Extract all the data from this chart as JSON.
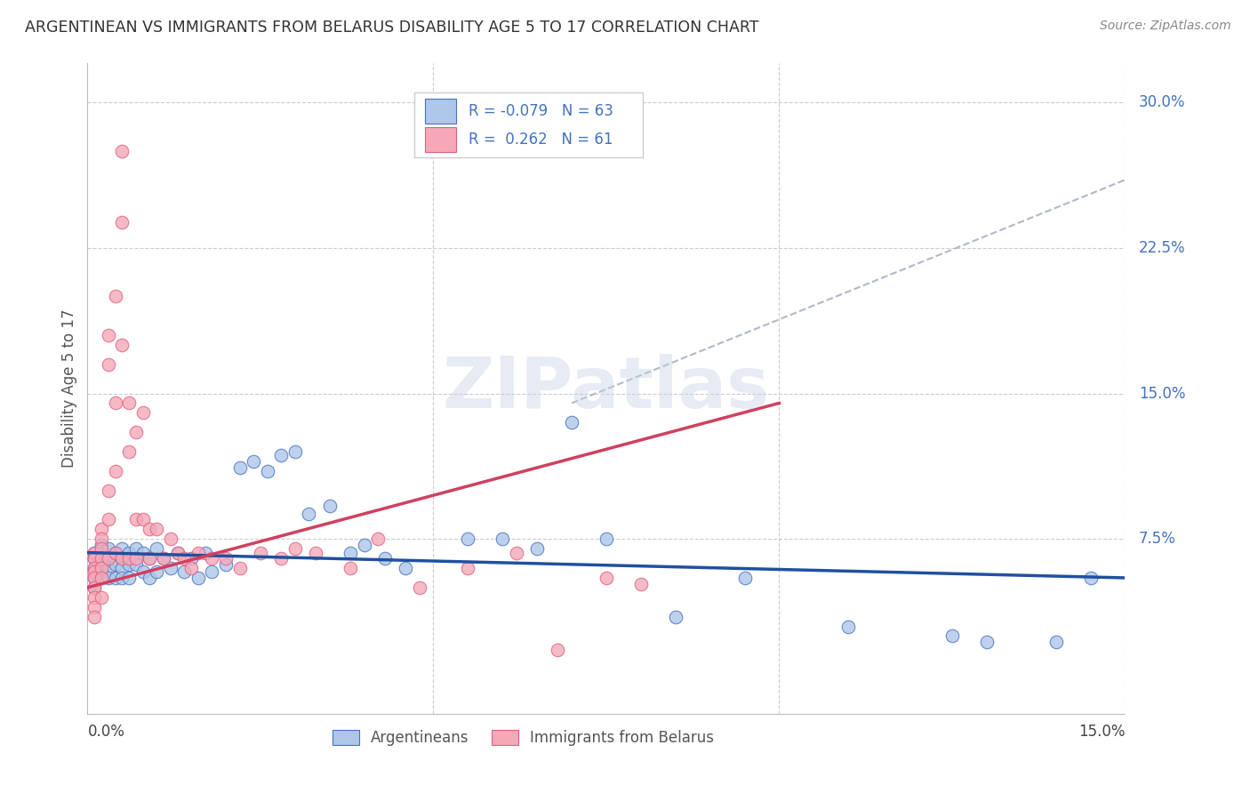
{
  "title": "ARGENTINEAN VS IMMIGRANTS FROM BELARUS DISABILITY AGE 5 TO 17 CORRELATION CHART",
  "source": "Source: ZipAtlas.com",
  "ylabel": "Disability Age 5 to 17",
  "ytick_labels": [
    "7.5%",
    "15.0%",
    "22.5%",
    "30.0%"
  ],
  "ytick_values": [
    0.075,
    0.15,
    0.225,
    0.3
  ],
  "xmin": 0.0,
  "xmax": 0.15,
  "ymin": -0.015,
  "ymax": 0.32,
  "R_blue": -0.079,
  "N_blue": 63,
  "R_pink": 0.262,
  "N_pink": 61,
  "color_blue_fill": "#aec6e8",
  "color_pink_fill": "#f4a8b8",
  "color_blue_edge": "#4472c4",
  "color_pink_edge": "#e06080",
  "color_blue_line": "#2050a0",
  "color_pink_line": "#d04060",
  "color_dashed": "#b0b8c8",
  "legend_label_blue": "Argentineans",
  "legend_label_pink": "Immigrants from Belarus",
  "blue_trend_x": [
    0.0,
    0.15
  ],
  "blue_trend_y": [
    0.068,
    0.055
  ],
  "pink_trend_x": [
    0.0,
    0.1
  ],
  "pink_trend_y": [
    0.05,
    0.145
  ],
  "dashed_trend_x": [
    0.07,
    0.15
  ],
  "dashed_trend_y": [
    0.145,
    0.26
  ],
  "blue_x": [
    0.001,
    0.001,
    0.001,
    0.001,
    0.001,
    0.002,
    0.002,
    0.002,
    0.002,
    0.003,
    0.003,
    0.003,
    0.003,
    0.004,
    0.004,
    0.004,
    0.005,
    0.005,
    0.005,
    0.005,
    0.006,
    0.006,
    0.006,
    0.007,
    0.007,
    0.008,
    0.008,
    0.009,
    0.009,
    0.01,
    0.01,
    0.011,
    0.012,
    0.013,
    0.014,
    0.015,
    0.016,
    0.017,
    0.018,
    0.02,
    0.022,
    0.024,
    0.026,
    0.028,
    0.03,
    0.032,
    0.035,
    0.038,
    0.04,
    0.043,
    0.046,
    0.055,
    0.06,
    0.065,
    0.07,
    0.075,
    0.085,
    0.095,
    0.11,
    0.125,
    0.13,
    0.14,
    0.145
  ],
  "blue_y": [
    0.068,
    0.065,
    0.06,
    0.055,
    0.05,
    0.072,
    0.068,
    0.062,
    0.058,
    0.07,
    0.065,
    0.06,
    0.055,
    0.068,
    0.062,
    0.055,
    0.07,
    0.065,
    0.06,
    0.055,
    0.068,
    0.062,
    0.055,
    0.07,
    0.062,
    0.068,
    0.058,
    0.065,
    0.055,
    0.07,
    0.058,
    0.065,
    0.06,
    0.068,
    0.058,
    0.065,
    0.055,
    0.068,
    0.058,
    0.062,
    0.112,
    0.115,
    0.11,
    0.118,
    0.12,
    0.088,
    0.092,
    0.068,
    0.072,
    0.065,
    0.06,
    0.075,
    0.075,
    0.07,
    0.135,
    0.075,
    0.035,
    0.055,
    0.03,
    0.025,
    0.022,
    0.022,
    0.055
  ],
  "pink_x": [
    0.001,
    0.001,
    0.001,
    0.001,
    0.001,
    0.001,
    0.001,
    0.001,
    0.001,
    0.002,
    0.002,
    0.002,
    0.002,
    0.002,
    0.002,
    0.002,
    0.003,
    0.003,
    0.003,
    0.003,
    0.003,
    0.004,
    0.004,
    0.004,
    0.004,
    0.005,
    0.005,
    0.005,
    0.005,
    0.006,
    0.006,
    0.006,
    0.007,
    0.007,
    0.007,
    0.008,
    0.008,
    0.009,
    0.009,
    0.01,
    0.011,
    0.012,
    0.013,
    0.014,
    0.015,
    0.016,
    0.018,
    0.02,
    0.022,
    0.025,
    0.028,
    0.03,
    0.033,
    0.038,
    0.042,
    0.048,
    0.055,
    0.062,
    0.068,
    0.075,
    0.08
  ],
  "pink_y": [
    0.068,
    0.065,
    0.06,
    0.058,
    0.055,
    0.05,
    0.045,
    0.04,
    0.035,
    0.08,
    0.075,
    0.07,
    0.065,
    0.06,
    0.055,
    0.045,
    0.18,
    0.165,
    0.1,
    0.085,
    0.065,
    0.2,
    0.145,
    0.11,
    0.068,
    0.275,
    0.238,
    0.175,
    0.065,
    0.145,
    0.12,
    0.065,
    0.13,
    0.085,
    0.065,
    0.14,
    0.085,
    0.08,
    0.065,
    0.08,
    0.065,
    0.075,
    0.068,
    0.065,
    0.06,
    0.068,
    0.065,
    0.065,
    0.06,
    0.068,
    0.065,
    0.07,
    0.068,
    0.06,
    0.075,
    0.05,
    0.06,
    0.068,
    0.018,
    0.055,
    0.052
  ]
}
